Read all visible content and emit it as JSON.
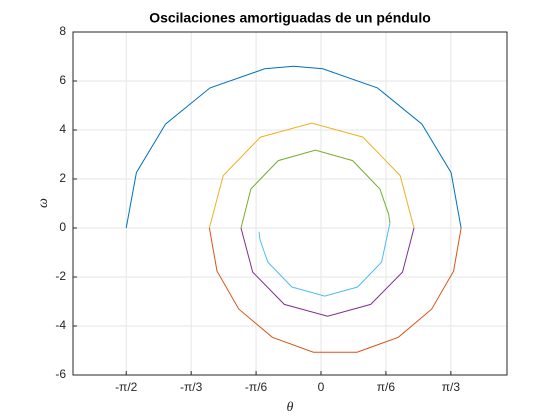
{
  "chart_data": {
    "type": "line",
    "title": "Oscilaciones amortiguadas de un péndulo",
    "xlabel": "θ",
    "ylabel": "ω",
    "xlim": [
      -2,
      1.5
    ],
    "ylim": [
      -6,
      8
    ],
    "xticks": [
      {
        "value": -1.5708,
        "label": "-π/2"
      },
      {
        "value": -1.0472,
        "label": "-π/3"
      },
      {
        "value": -0.5236,
        "label": "-π/6"
      },
      0,
      {
        "value": 0.5236,
        "label": "π/6"
      },
      {
        "value": 1.0472,
        "label": "π/3"
      }
    ],
    "yticks": [
      -6,
      -4,
      -2,
      0,
      2,
      4,
      6,
      8
    ],
    "grid": true,
    "series": [
      {
        "color": "#0072BD",
        "x": [
          -1.571,
          -1.489,
          -1.254,
          -0.895,
          -0.454,
          -0.22,
          0.014,
          0.455,
          0.814,
          1.049,
          1.13
        ],
        "values": [
          0,
          2.26,
          4.24,
          5.72,
          6.5,
          6.6,
          6.5,
          5.72,
          4.24,
          2.26,
          0
        ]
      },
      {
        "color": "#D95319",
        "x": [
          1.13,
          1.069,
          0.893,
          0.623,
          0.291,
          -0.061,
          -0.393,
          -0.663,
          -0.839,
          -0.9
        ],
        "values": [
          0,
          -1.76,
          -3.31,
          -4.46,
          -5.07,
          -5.07,
          -4.46,
          -3.31,
          -1.76,
          0
        ]
      },
      {
        "color": "#EDB120",
        "x": [
          -0.9,
          -0.789,
          -0.488,
          -0.075,
          0.338,
          0.639,
          0.75
        ],
        "values": [
          0,
          2.14,
          3.71,
          4.28,
          3.71,
          2.14,
          0
        ]
      },
      {
        "color": "#7E2F8E",
        "x": [
          0.75,
          0.657,
          0.401,
          0.053,
          -0.296,
          -0.551,
          -0.645
        ],
        "values": [
          0,
          -1.8,
          -3.12,
          -3.6,
          -3.12,
          -1.8,
          0
        ]
      },
      {
        "color": "#77AC30",
        "x": [
          -0.645,
          -0.565,
          -0.345,
          -0.045,
          0.255,
          0.475,
          0.546,
          0.556
        ],
        "values": [
          0,
          1.59,
          2.75,
          3.18,
          2.75,
          1.59,
          0.55,
          0.2
        ]
      },
      {
        "color": "#4DBEEE",
        "x": [
          0.556,
          0.489,
          0.295,
          0.03,
          -0.235,
          -0.429,
          -0.492,
          -0.5
        ],
        "values": [
          0.2,
          -1.39,
          -2.41,
          -2.78,
          -2.41,
          -1.39,
          -0.48,
          -0.15
        ]
      }
    ]
  }
}
